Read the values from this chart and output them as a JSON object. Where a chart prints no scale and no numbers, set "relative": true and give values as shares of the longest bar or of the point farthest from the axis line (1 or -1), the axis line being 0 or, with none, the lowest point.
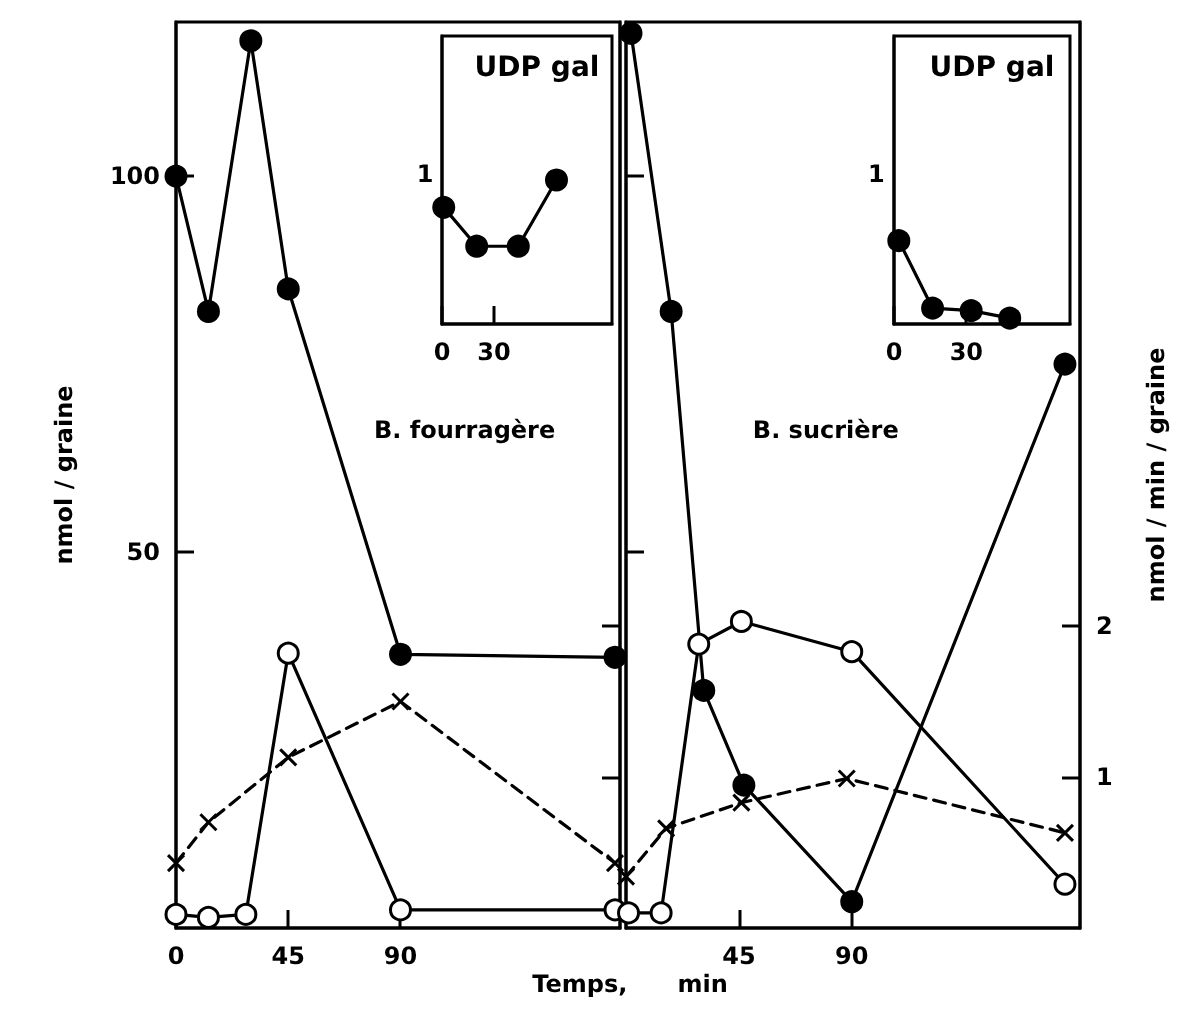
{
  "chart_data": [
    {
      "type": "line",
      "xlabel": "Temps,      min",
      "ylabel": "nmol / graine",
      "annotations": [
        "B. fourragère"
      ],
      "xlim": [
        0,
        178
      ],
      "xticks": [
        0,
        45,
        90
      ],
      "ylim": [
        0,
        120.5
      ],
      "yticks": [
        50,
        100
      ],
      "y2lim": [
        0,
        6
      ],
      "series": [
        {
          "color": "#000000",
          "marker": "circle",
          "line_style": "solid",
          "x": [
            0,
            13,
            30,
            45,
            90,
            176
          ],
          "values": [
            100,
            82,
            118,
            85,
            36.4,
            36
          ]
        },
        {
          "color": "#000000",
          "marker": "emptyCircle",
          "line_style": "solid",
          "axis": "y2",
          "x": [
            0,
            13,
            28,
            45,
            90,
            176
          ],
          "values": [
            0.09,
            0.07,
            0.09,
            1.82,
            0.12,
            0.12
          ]
        },
        {
          "color": "#000000",
          "marker": "cross",
          "line_style": "dashed",
          "axis": "y2",
          "x": [
            0,
            13,
            45,
            90,
            176
          ],
          "values": [
            0.43,
            0.7,
            1.13,
            1.5,
            0.43
          ]
        }
      ]
    },
    {
      "type": "line",
      "title": "UDP gal",
      "annotations": [
        "1"
      ],
      "relative": true,
      "xlim": [
        0,
        98
      ],
      "xticks": [
        0,
        30
      ],
      "series": [
        {
          "color": "#000000",
          "marker": "circle",
          "line_style": "solid",
          "x": [
            1,
            20,
            44,
            66
          ],
          "values": [
            0.81,
            0.54,
            0.54,
            1
          ]
        }
      ]
    },
    {
      "type": "line",
      "y2label": "nmol / min / graine",
      "annotations": [
        "B. sucrière"
      ],
      "xlim": [
        0,
        181
      ],
      "xticks": [
        45,
        90
      ],
      "ylim": [
        0,
        120.5
      ],
      "y2lim": [
        0,
        6
      ],
      "y2ticks": [
        1,
        2
      ],
      "series": [
        {
          "color": "#000000",
          "marker": "circle",
          "line_style": "solid",
          "x": [
            2,
            18,
            31,
            47,
            90,
            175
          ],
          "values": [
            119,
            82,
            31.6,
            19,
            3.5,
            75
          ]
        },
        {
          "color": "#000000",
          "marker": "emptyCircle",
          "line_style": "solid",
          "axis": "y2",
          "x": [
            1,
            14,
            29,
            46,
            90,
            175
          ],
          "values": [
            0.1,
            0.1,
            1.88,
            2.03,
            1.83,
            0.29
          ]
        },
        {
          "color": "#000000",
          "marker": "cross",
          "line_style": "dashed",
          "axis": "y2",
          "x": [
            0,
            16,
            46,
            88,
            175
          ],
          "values": [
            0.34,
            0.66,
            0.83,
            0.99,
            0.63
          ]
        }
      ]
    },
    {
      "type": "line",
      "title": "UDP gal",
      "annotations": [
        "1"
      ],
      "relative": true,
      "xlim": [
        0,
        73
      ],
      "xticks": [
        0,
        30
      ],
      "series": [
        {
          "color": "#000000",
          "marker": "circle",
          "line_style": "solid",
          "x": [
            2,
            16,
            32,
            48
          ],
          "values": [
            1,
            0.19,
            0.16,
            0.07
          ]
        }
      ]
    }
  ]
}
